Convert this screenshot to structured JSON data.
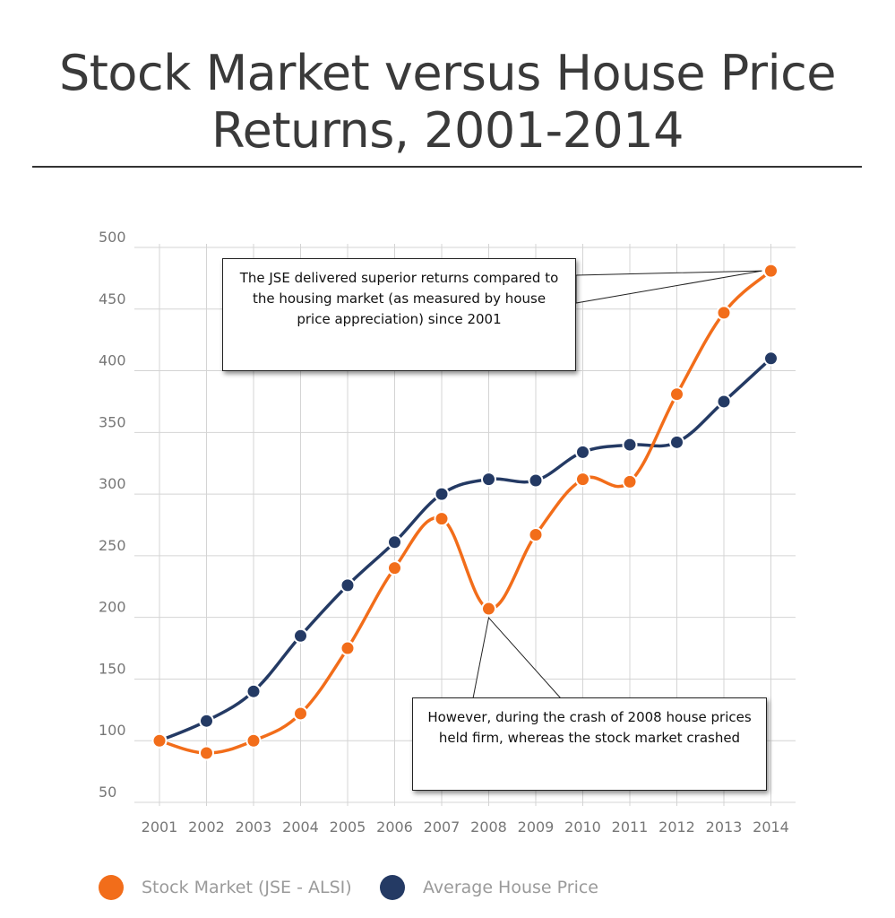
{
  "title": "Stock Market versus House Price Returns, 2001-2014",
  "colors": {
    "stock": "#f26d1a",
    "house": "#243a64",
    "grid": "#d4d4d4",
    "marker_outline": "#ffffff"
  },
  "annotations": [
    "The JSE delivered superior returns compared to the housing market (as measured by house price appreciation) since 2001",
    "However, during the crash of 2008 house prices held firm, whereas the stock market crashed"
  ],
  "legend": [
    {
      "label": "Stock Market (JSE - ALSI)",
      "color": "#f26d1a"
    },
    {
      "label": "Average House Price",
      "color": "#243a64"
    }
  ],
  "chart_data": {
    "type": "line",
    "title": "Stock Market versus House Price Returns, 2001-2014",
    "xlabel": "",
    "ylabel": "",
    "x": [
      "2001",
      "2002",
      "2003",
      "2004",
      "2005",
      "2006",
      "2007",
      "2008",
      "2009",
      "2010",
      "2011",
      "2012",
      "2013",
      "2014"
    ],
    "y_ticks": [
      50,
      100,
      150,
      200,
      250,
      300,
      350,
      400,
      450,
      500
    ],
    "ylim": [
      50,
      500
    ],
    "grid": true,
    "legend_position": "bottom",
    "series": [
      {
        "name": "Stock Market (JSE - ALSI)",
        "values": [
          100,
          90,
          100,
          122,
          175,
          240,
          280,
          207,
          267,
          312,
          310,
          381,
          447,
          481
        ]
      },
      {
        "name": "Average House Price",
        "values": [
          100,
          116,
          140,
          185,
          226,
          261,
          300,
          312,
          311,
          334,
          340,
          342,
          375,
          410
        ]
      }
    ]
  }
}
